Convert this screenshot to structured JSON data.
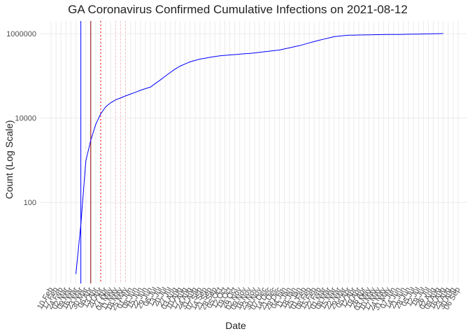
{
  "chart_data": {
    "type": "line",
    "title": "GA Coronavirus Confirmed Cumulative Infections on 2021-08-12",
    "x_label": "Date",
    "y_label": "Count (Log Scale)",
    "log_y": true,
    "grid": true,
    "categories": [
      "10 Feb",
      "17 Feb",
      "24 Feb",
      "02 Mar",
      "09 Mar",
      "16 Mar",
      "23 Mar",
      "30 Mar",
      "06 Apr",
      "13 Apr",
      "20 Apr",
      "27 Apr",
      "04 May",
      "11 May",
      "18 May",
      "25 May",
      "01 Jun",
      "08 Jun",
      "15 Jun",
      "22 Jun",
      "29 Jun",
      "06 Jul",
      "13 Jul",
      "20 Jul",
      "27 Jul",
      "03 Aug",
      "10 Aug",
      "17 Aug",
      "24 Aug",
      "31 Aug",
      "07 Sep",
      "14 Sep",
      "21 Sep",
      "28 Sep",
      "05 Oct",
      "12 Oct",
      "19 Oct",
      "26 Oct",
      "02 Nov",
      "09 Nov",
      "16 Nov",
      "23 Nov",
      "30 Nov",
      "07 Dec",
      "14 Dec",
      "21 Dec",
      "28 Dec",
      "04 Jan",
      "11 Jan",
      "18 Jan",
      "25 Jan",
      "01 Feb",
      "08 Feb",
      "15 Feb",
      "22 Feb",
      "01 Mar",
      "08 Mar",
      "15 Mar",
      "22 Mar",
      "29 Mar",
      "05 Apr",
      "12 Apr",
      "19 Apr",
      "26 Apr",
      "03 May",
      "10 May",
      "17 May",
      "24 May",
      "31 May",
      "07 Jun",
      "14 Jun",
      "21 Jun",
      "28 Jun",
      "05 Jul",
      "12 Jul",
      "19 Jul",
      "26 Jul",
      "02 Aug",
      "09 Aug",
      "16 Aug",
      "23 Aug",
      "30 Aug",
      "06 Sep"
    ],
    "series": [
      {
        "color": "#0000ff",
        "values": [
          null,
          null,
          null,
          null,
          null,
          2,
          30,
          960,
          3000,
          7100,
          12600,
          18500,
          23000,
          27000,
          30000,
          33500,
          37000,
          41000,
          45500,
          50000,
          54000,
          66000,
          80000,
          98000,
          120000,
          145000,
          170000,
          192000,
          215000,
          232000,
          250000,
          262000,
          275000,
          287000,
          300000,
          307000,
          314000,
          320000,
          327000,
          334000,
          340000,
          350000,
          362000,
          374000,
          386000,
          398000,
          410000,
          435000,
          462000,
          490000,
          520000,
          560000,
          605000,
          650000,
          700000,
          745000,
          795000,
          850000,
          875000,
          900000,
          920000,
          925000,
          930000,
          935000,
          940000,
          945000,
          950000,
          952000,
          955000,
          958000,
          960000,
          965000,
          970000,
          975000,
          980000,
          985000,
          990000,
          995000,
          1000000,
          1010000,
          null,
          null,
          null
        ]
      }
    ],
    "vlines": [
      {
        "x": "23 Mar",
        "color": "#0000ff",
        "dash": "solid"
      },
      {
        "x": "06 Apr",
        "color": "#8b0000",
        "dash": "solid"
      },
      {
        "x": "20 Apr",
        "color": "#ff0000",
        "dash": "dotted"
      },
      {
        "x": "11 May",
        "color": "#ffb6c1",
        "dash": "dotted"
      },
      {
        "x": "18 May",
        "color": "#ffb6c1",
        "dash": "dotted"
      },
      {
        "x": "25 May",
        "color": "#ffb6c1",
        "dash": "dotted"
      }
    ],
    "ylim": [
      1.2,
      2000000
    ],
    "yticks": [
      100,
      10000,
      1000000
    ]
  }
}
